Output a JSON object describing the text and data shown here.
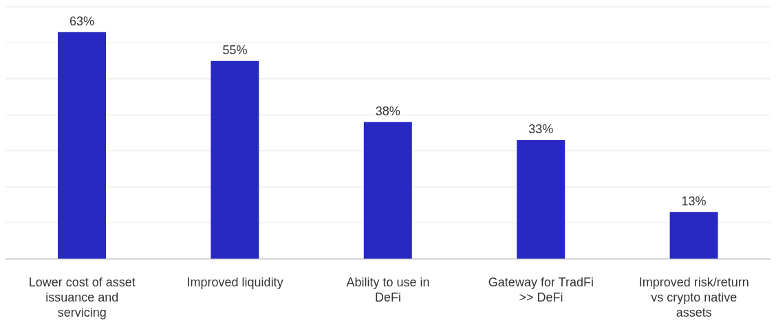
{
  "chart_data": {
    "type": "bar",
    "categories": [
      "Lower cost of asset issuance and servicing",
      "Improved liquidity",
      "Ability to use in DeFi",
      "Gateway for TradFi >> DeFi",
      "Improved risk/return vs crypto native assets"
    ],
    "values": [
      63,
      55,
      38,
      33,
      13
    ],
    "value_labels": [
      "63%",
      "55%",
      "38%",
      "33%",
      "13%"
    ],
    "color": "#2828c2",
    "ylim": [
      0,
      70
    ],
    "grid": "y",
    "tick_labels": "x"
  }
}
